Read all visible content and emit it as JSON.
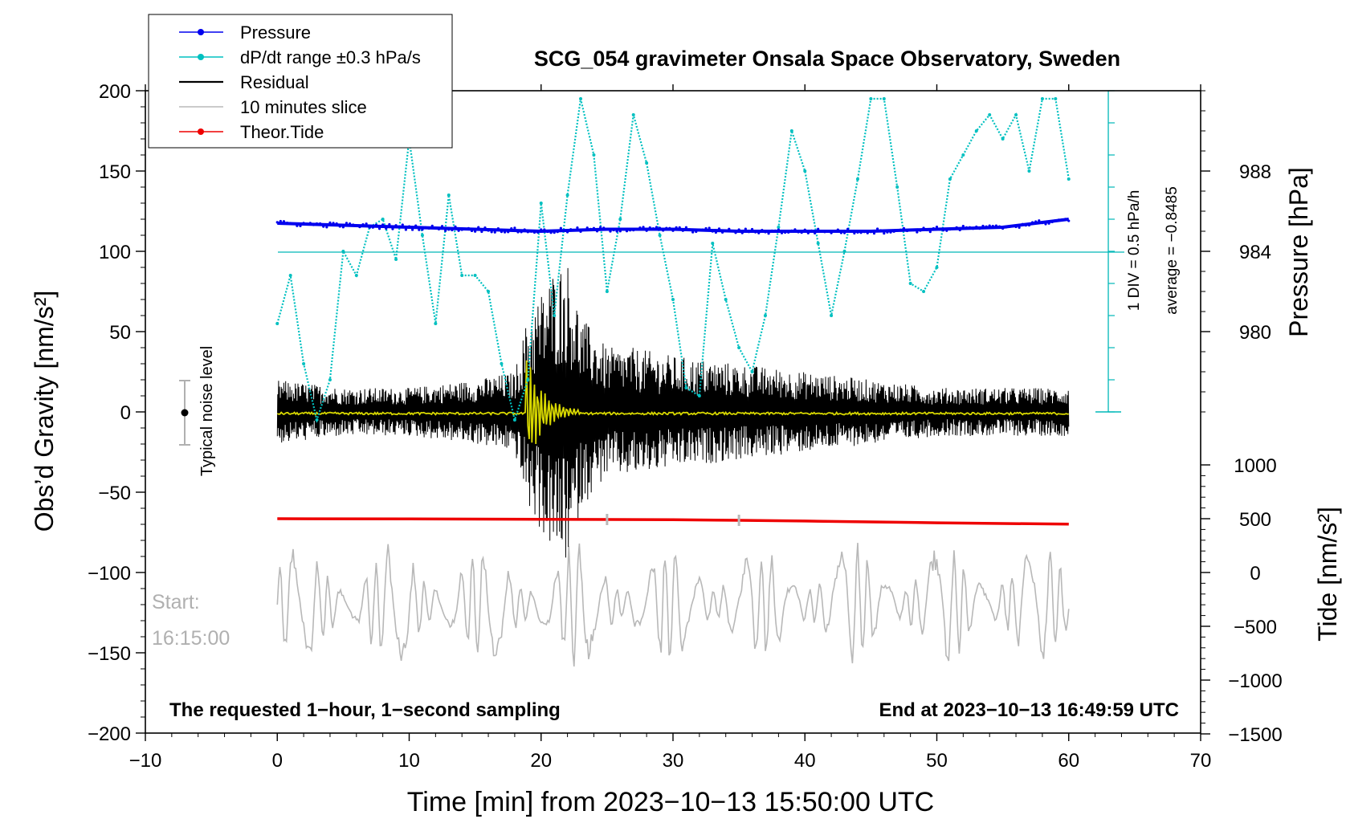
{
  "chart_data": {
    "type": "line",
    "title": "SCG_054 gravimeter Onsala Space Observatory, Sweden",
    "xlabel": "Time [min] from 2023−10−13 15:50:00 UTC",
    "ylabel_left": "Obs’d Gravity [nm/s²]",
    "ylabel_pressure": "Pressure [hPa]",
    "ylabel_tide": "Tide [nm/s²]",
    "xlim": [
      -10,
      70
    ],
    "ylim_gravity": [
      -200,
      200
    ],
    "x_ticks": [
      "−10",
      "0",
      "10",
      "20",
      "30",
      "40",
      "50",
      "60",
      "70"
    ],
    "y_ticks_left": [
      "200",
      "150",
      "100",
      "50",
      "0",
      "−50",
      "−100",
      "−150",
      "−200"
    ],
    "pressure_ticks": [
      "988",
      "984",
      "980"
    ],
    "pressure_axis": {
      "min": 976,
      "max": 992,
      "ticks": [
        988,
        984,
        980
      ]
    },
    "tide_ticks": [
      "1000",
      "500",
      "0",
      "−500",
      "−1000",
      "−1500"
    ],
    "tide_axis": {
      "min": -1500,
      "max": 1000,
      "ticks": [
        1000,
        500,
        0,
        -500,
        -1000,
        -1500
      ]
    },
    "legend": [
      {
        "label": "Pressure",
        "color": "#0000ee",
        "marker": true
      },
      {
        "label": "dP/dt range ±0.3 hPa/s",
        "color": "#00c0c0",
        "marker": true
      },
      {
        "label": "Residual",
        "color": "#000000",
        "marker": false
      },
      {
        "label": "10 minutes slice",
        "color": "#b8b8b8",
        "marker": false
      },
      {
        "label": "Theor.Tide",
        "color": "#ee0000",
        "marker": true
      }
    ],
    "legend_position": "top-left",
    "annotations": {
      "noise": "Typical noise level",
      "start_label": "Start:",
      "start_time": "16:15:00",
      "bottom_left": "The requested 1−hour, 1−second sampling",
      "bottom_right": "End at 2023−10−13 16:49:59 UTC",
      "scale_div": "1 DIV = 0.5 hPa/h",
      "scale_avg": "average = −0.8485"
    },
    "series": [
      {
        "name": "Pressure",
        "color": "#0000ee",
        "x": [
          0,
          5,
          10,
          15,
          20,
          25,
          30,
          35,
          40,
          45,
          50,
          55,
          60
        ],
        "y": [
          985.4,
          985.3,
          985.2,
          985.1,
          985.0,
          985.1,
          985.1,
          985.0,
          985.0,
          985.0,
          985.1,
          985.2,
          985.6
        ]
      },
      {
        "name": "dP/dt",
        "color": "#00c0c0",
        "gravity_scale": true,
        "x": [
          0,
          1,
          2,
          3,
          4,
          5,
          6,
          7,
          8,
          9,
          10,
          11,
          12,
          13,
          14,
          15,
          16,
          17,
          18,
          19,
          20,
          21,
          22,
          23,
          24,
          25,
          26,
          27,
          28,
          29,
          30,
          31,
          32,
          33,
          34,
          35,
          36,
          37,
          38,
          39,
          40,
          41,
          42,
          43,
          44,
          45,
          46,
          47,
          48,
          49,
          50,
          51,
          52,
          53,
          54,
          55,
          56,
          57,
          58,
          59,
          60
        ],
        "y": [
          55,
          85,
          30,
          -5,
          20,
          100,
          85,
          115,
          120,
          95,
          170,
          110,
          55,
          135,
          85,
          85,
          75,
          30,
          -5,
          20,
          130,
          60,
          135,
          195,
          160,
          75,
          120,
          185,
          155,
          110,
          70,
          15,
          10,
          105,
          70,
          40,
          25,
          60,
          115,
          175,
          150,
          105,
          60,
          100,
          145,
          195,
          195,
          140,
          80,
          75,
          90,
          145,
          160,
          175,
          185,
          170,
          185,
          150,
          195,
          195,
          145
        ]
      },
      {
        "name": "Residual envelope",
        "color": "#000000",
        "x": [
          0,
          5,
          10,
          15,
          18,
          19,
          20,
          21,
          22,
          23,
          25,
          27,
          30,
          35,
          40,
          45,
          50,
          55,
          60
        ],
        "y": [
          20,
          15,
          15,
          20,
          25,
          60,
          75,
          90,
          95,
          60,
          40,
          40,
          35,
          30,
          25,
          20,
          15,
          15,
          15
        ]
      },
      {
        "name": "Theor.Tide",
        "color": "#ee0000",
        "x": [
          0,
          10,
          20,
          30,
          35,
          40,
          45,
          50,
          55,
          60
        ],
        "y": [
          500,
          498,
          495,
          490,
          485,
          478,
          470,
          462,
          455,
          450
        ]
      },
      {
        "name": "10 minutes slice",
        "color": "#b8b8b8",
        "x": [
          0,
          60
        ],
        "y": [
          -120,
          -120
        ],
        "range": [
          -180,
          -70
        ]
      }
    ]
  }
}
